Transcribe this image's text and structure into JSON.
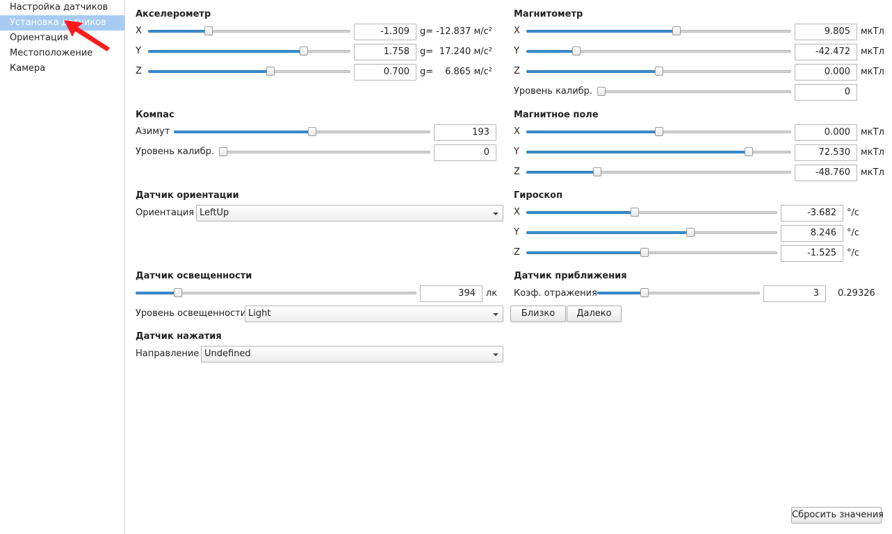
{
  "sidebar": {
    "items": [
      {
        "label": "Настройка датчиков"
      },
      {
        "label": "Установка датчиков"
      },
      {
        "label": "Ориентация"
      },
      {
        "label": "Местоположение"
      },
      {
        "label": "Камера"
      }
    ],
    "selected_index": 1
  },
  "accelerometer": {
    "title": "Акселерометр",
    "unit_g": "g=",
    "axes": [
      {
        "label": "X",
        "value": "-1.309",
        "ms2": "-12.837 м/с²",
        "level": 0.29
      },
      {
        "label": "Y",
        "value": "1.758",
        "ms2": "17.240 м/с²",
        "level": 0.78
      },
      {
        "label": "Z",
        "value": "0.700",
        "ms2": "6.865 м/с²",
        "level": 0.61
      }
    ]
  },
  "magnetometer": {
    "title": "Магнитометр",
    "unit": "мкТл",
    "axes": [
      {
        "label": "X",
        "value": "9.805",
        "level": 0.57
      },
      {
        "label": "Y",
        "value": "-42.472",
        "level": 0.18
      },
      {
        "label": "Z",
        "value": "0.000",
        "level": 0.5
      }
    ],
    "calib_label": "Уровень калибр.",
    "calib_value": "0",
    "calib_level": 0
  },
  "compass": {
    "title": "Компас",
    "azimuth_label": "Азимут",
    "azimuth_value": "193",
    "azimuth_level": 0.54,
    "calib_label": "Уровень калибр.",
    "calib_value": "0",
    "calib_level": 0
  },
  "magnetic_field": {
    "title": "Магнитное поле",
    "unit": "мкТл",
    "axes": [
      {
        "label": "X",
        "value": "0.000",
        "level": 0.5
      },
      {
        "label": "Y",
        "value": "72.530",
        "level": 0.85
      },
      {
        "label": "Z",
        "value": "-48.760",
        "level": 0.26
      }
    ]
  },
  "orientation_sensor": {
    "title": "Датчик ориентации",
    "label": "Ориентация",
    "value": "LeftUp"
  },
  "gyroscope": {
    "title": "Гироскоп",
    "unit": "°/с",
    "axes": [
      {
        "label": "X",
        "value": "-3.682",
        "level": 0.43
      },
      {
        "label": "Y",
        "value": "8.246",
        "level": 0.66
      },
      {
        "label": "Z",
        "value": "-1.525",
        "level": 0.47
      }
    ]
  },
  "light_sensor": {
    "title": "Датчик освещенности",
    "value": "394",
    "unit": "лк",
    "level": 0.14,
    "level_label": "Уровень освещенности",
    "level_value": "Light"
  },
  "proximity_sensor": {
    "title": "Датчик приближения",
    "reflect_label": "Коэф. отражения",
    "reflect_value": "3",
    "reflect_level": 0.28,
    "ratio": "0.29326",
    "near_label": "Близко",
    "far_label": "Далеко"
  },
  "pressure_sensor": {
    "title": "Датчик нажатия",
    "direction_label": "Направление",
    "direction_value": "Undefined"
  },
  "reset_label": "Сбросить значения",
  "colors": {
    "selection": "#a7cbf3",
    "slider_fill": "#3a8fd2",
    "arrow": "#ff1a1a"
  }
}
